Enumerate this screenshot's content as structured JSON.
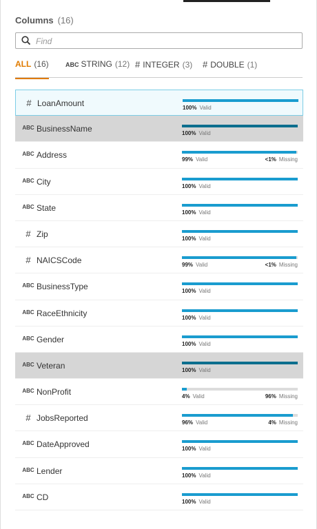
{
  "header": {
    "title": "Columns",
    "count": "(16)"
  },
  "search": {
    "placeholder": "Find"
  },
  "tabs": [
    {
      "label": "ALL",
      "count": "(16)",
      "active": true
    },
    {
      "icon": "ABC",
      "label": "STRING",
      "count": "(12)"
    },
    {
      "icon": "#",
      "label": "INTEGER",
      "count": "(3)"
    },
    {
      "icon": "#",
      "label": "DOUBLE",
      "count": "(1)"
    }
  ],
  "words": {
    "valid": "Valid",
    "missing": "Missing"
  },
  "rows": [
    {
      "icon": "#",
      "name": "LoanAmount",
      "valid": {
        "value": 100,
        "label": "100%"
      },
      "state": "selected"
    },
    {
      "icon": "ABC",
      "name": "BusinessName",
      "valid": {
        "value": 100,
        "label": "100%"
      },
      "state": "highlighted"
    },
    {
      "icon": "ABC",
      "name": "Address",
      "valid": {
        "value": 99,
        "label": "99%"
      },
      "missing": "<1%"
    },
    {
      "icon": "ABC",
      "name": "City",
      "valid": {
        "value": 100,
        "label": "100%"
      }
    },
    {
      "icon": "ABC",
      "name": "State",
      "valid": {
        "value": 100,
        "label": "100%"
      }
    },
    {
      "icon": "#",
      "name": "Zip",
      "valid": {
        "value": 100,
        "label": "100%"
      }
    },
    {
      "icon": "#",
      "name": "NAICSCode",
      "valid": {
        "value": 99,
        "label": "99%"
      },
      "missing": "<1%"
    },
    {
      "icon": "ABC",
      "name": "BusinessType",
      "valid": {
        "value": 100,
        "label": "100%"
      }
    },
    {
      "icon": "ABC",
      "name": "RaceEthnicity",
      "valid": {
        "value": 100,
        "label": "100%"
      }
    },
    {
      "icon": "ABC",
      "name": "Gender",
      "valid": {
        "value": 100,
        "label": "100%"
      }
    },
    {
      "icon": "ABC",
      "name": "Veteran",
      "valid": {
        "value": 100,
        "label": "100%"
      },
      "state": "highlighted"
    },
    {
      "icon": "ABC",
      "name": "NonProfit",
      "valid": {
        "value": 4,
        "label": "4%"
      },
      "missing": "96%"
    },
    {
      "icon": "#",
      "name": "JobsReported",
      "valid": {
        "value": 96,
        "label": "96%"
      },
      "missing": "4%"
    },
    {
      "icon": "ABC",
      "name": "DateApproved",
      "valid": {
        "value": 100,
        "label": "100%"
      }
    },
    {
      "icon": "ABC",
      "name": "Lender",
      "valid": {
        "value": 100,
        "label": "100%"
      }
    },
    {
      "icon": "ABC",
      "name": "CD",
      "valid": {
        "value": 100,
        "label": "100%"
      }
    }
  ]
}
